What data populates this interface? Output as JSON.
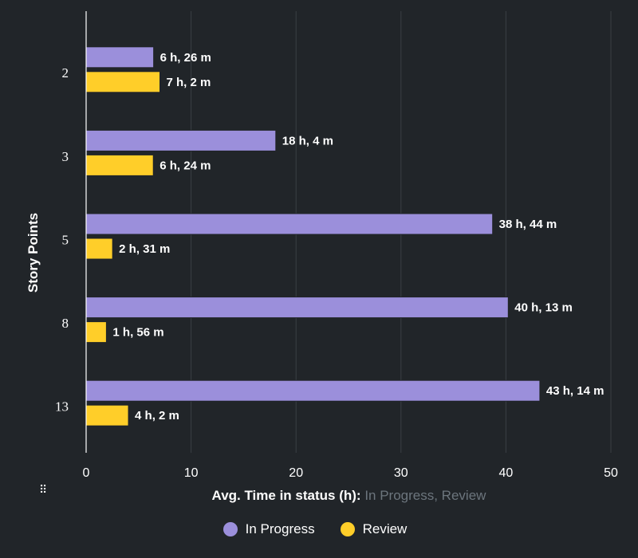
{
  "chart_data": {
    "type": "bar",
    "orientation": "horizontal",
    "categories": [
      "2",
      "3",
      "5",
      "8",
      "13"
    ],
    "series": [
      {
        "name": "In Progress",
        "color": "#9b8fdb",
        "values": [
          6.43,
          18.07,
          38.73,
          40.22,
          43.23
        ],
        "labels": [
          "6 h, 26 m",
          "18 h, 4 m",
          "38 h, 44 m",
          "40 h, 13 m",
          "43 h, 14 m"
        ]
      },
      {
        "name": "Review",
        "color": "#ffce29",
        "values": [
          7.03,
          6.4,
          2.52,
          1.93,
          4.03
        ],
        "labels": [
          "7 h, 2 m",
          "6 h, 24 m",
          "2 h, 31 m",
          "1 h, 56 m",
          "4 h, 2 m"
        ]
      }
    ],
    "xlim": [
      0,
      50
    ],
    "x_ticks": [
      "0",
      "10",
      "20",
      "30",
      "40",
      "50"
    ],
    "ylabel": "Story Points",
    "xlabel_main": "Avg. Time in status (h):",
    "xlabel_sub": "In Progress, Review",
    "grid": true,
    "legend_position": "bottom-center"
  },
  "icons": {
    "drag_handle": "grip-dots-icon",
    "drag_glyph": "⠿"
  }
}
